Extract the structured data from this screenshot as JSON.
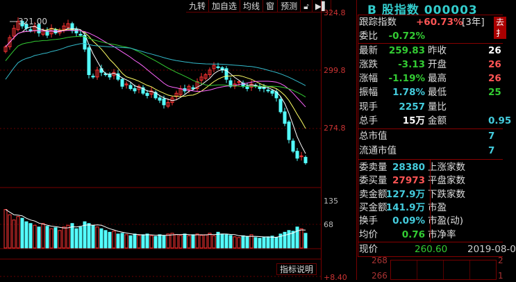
{
  "toolbar": {
    "items": [
      "九转",
      "加自选",
      "均线",
      "窗",
      "预测"
    ],
    "lock_icon": "lock-icon",
    "next_icon": "skip-end-icon"
  },
  "axis": {
    "price_ticks": [
      "324.8",
      "299.8",
      "274.8"
    ],
    "volume_ticks": [
      "135",
      "68"
    ],
    "indicator_tick": "+8.40"
  },
  "annotation": {
    "high_marker": "321.00"
  },
  "help_button": "指标说明",
  "colors": {
    "up": "#ff3333",
    "down": "#54ffff",
    "ma5": "#ffffff",
    "ma10": "#ffff66",
    "ma20": "#ff66ff",
    "ma30": "#33cc33",
    "ma60": "#33bbcc"
  },
  "chart_data": {
    "type": "candlestick",
    "closes": [
      310,
      314,
      318,
      321,
      319,
      318,
      317,
      319,
      316,
      317,
      315,
      318,
      316,
      317,
      319,
      320,
      317,
      316,
      315,
      309,
      298,
      297,
      300,
      299,
      298,
      297,
      299,
      296,
      293,
      294,
      292,
      291,
      293,
      290,
      289,
      291,
      288,
      287,
      285,
      286,
      288,
      290,
      292,
      291,
      293,
      292,
      295,
      297,
      298,
      300,
      302,
      301,
      300,
      296,
      293,
      294,
      295,
      293,
      292,
      294,
      293,
      292,
      292,
      291,
      290,
      288,
      282,
      277,
      270,
      265,
      262,
      263,
      260
    ],
    "volumes": [
      110,
      95,
      80,
      90,
      85,
      75,
      70,
      65,
      60,
      70,
      62,
      55,
      58,
      50,
      60,
      65,
      70,
      55,
      60,
      75,
      70,
      65,
      60,
      55,
      50,
      45,
      48,
      40,
      42,
      38,
      35,
      40,
      36,
      38,
      40,
      35,
      33,
      38,
      35,
      40,
      42,
      38,
      36,
      40,
      35,
      38,
      40,
      36,
      38,
      42,
      35,
      45,
      40,
      38,
      36,
      32,
      30,
      35,
      33,
      38,
      30,
      28,
      30,
      32,
      34,
      30,
      40,
      45,
      50,
      48,
      60,
      55,
      42
    ],
    "price_range": [
      255,
      326
    ],
    "volume_range": [
      0,
      180
    ]
  },
  "quote": {
    "title": "B 股指数 000003",
    "track_label": "跟踪指数",
    "track_value": "+60.73%",
    "track_period": "[3年]",
    "track_button": "去扌",
    "rows": [
      {
        "l": "委比",
        "v": "-0.72%",
        "vc": "gr"
      },
      {
        "l": "最新",
        "v": "259.83",
        "vc": "gr",
        "l2": "昨收",
        "v2": "26",
        "v2c": "w"
      },
      {
        "l": "涨跌",
        "v": "-3.13",
        "vc": "gr",
        "l2": "开盘",
        "v2": "26",
        "v2c": "r"
      },
      {
        "l": "涨幅",
        "v": "-1.19%",
        "vc": "gr",
        "l2": "最高",
        "v2": "26",
        "v2c": "r"
      },
      {
        "l": "振幅",
        "v": "1.78%",
        "vc": "c",
        "l2": "最低",
        "v2": "25",
        "v2c": "gr"
      },
      {
        "l": "现手",
        "v": "2257",
        "vc": "c",
        "l2": "量比",
        "v2": "",
        "v2c": "w"
      },
      {
        "l": "总手",
        "v": "15万",
        "vc": "w",
        "l2": "金额",
        "v2": "0.95",
        "v2c": "c"
      },
      {
        "l": "总市值",
        "v": "",
        "vc": "c",
        "l2": "",
        "v2": "7",
        "v2c": "c"
      },
      {
        "l": "流通市值",
        "v": "",
        "vc": "c",
        "l2": "",
        "v2": "7",
        "v2c": "c"
      },
      {
        "l": "委卖量",
        "v": "28380",
        "vc": "c",
        "l2": "上涨家数",
        "v2": "",
        "v2c": "w"
      },
      {
        "l": "委买量",
        "v": "27973",
        "vc": "r",
        "l2": "平盘家数",
        "v2": "",
        "v2c": "w"
      },
      {
        "l": "卖金额",
        "v": "127.9万",
        "vc": "c",
        "l2": "下跌家数",
        "v2": "",
        "v2c": "w"
      },
      {
        "l": "买金额",
        "v": "141.9万",
        "vc": "c",
        "l2": "市盈",
        "v2": "",
        "v2c": "w"
      },
      {
        "l": "换手",
        "v": "0.09%",
        "vc": "c",
        "l2": "市盈(动)",
        "v2": "",
        "v2c": "w"
      },
      {
        "l": "均价",
        "v": "0.76",
        "vc": "gr",
        "l2": "市净率",
        "v2": "",
        "v2c": "w"
      }
    ],
    "price_label": "现价",
    "price_value": "260.60",
    "date": "2019-08-0",
    "mini_ticks": [
      "268",
      "266"
    ],
    "mini_right": [
      "2",
      "1"
    ]
  }
}
